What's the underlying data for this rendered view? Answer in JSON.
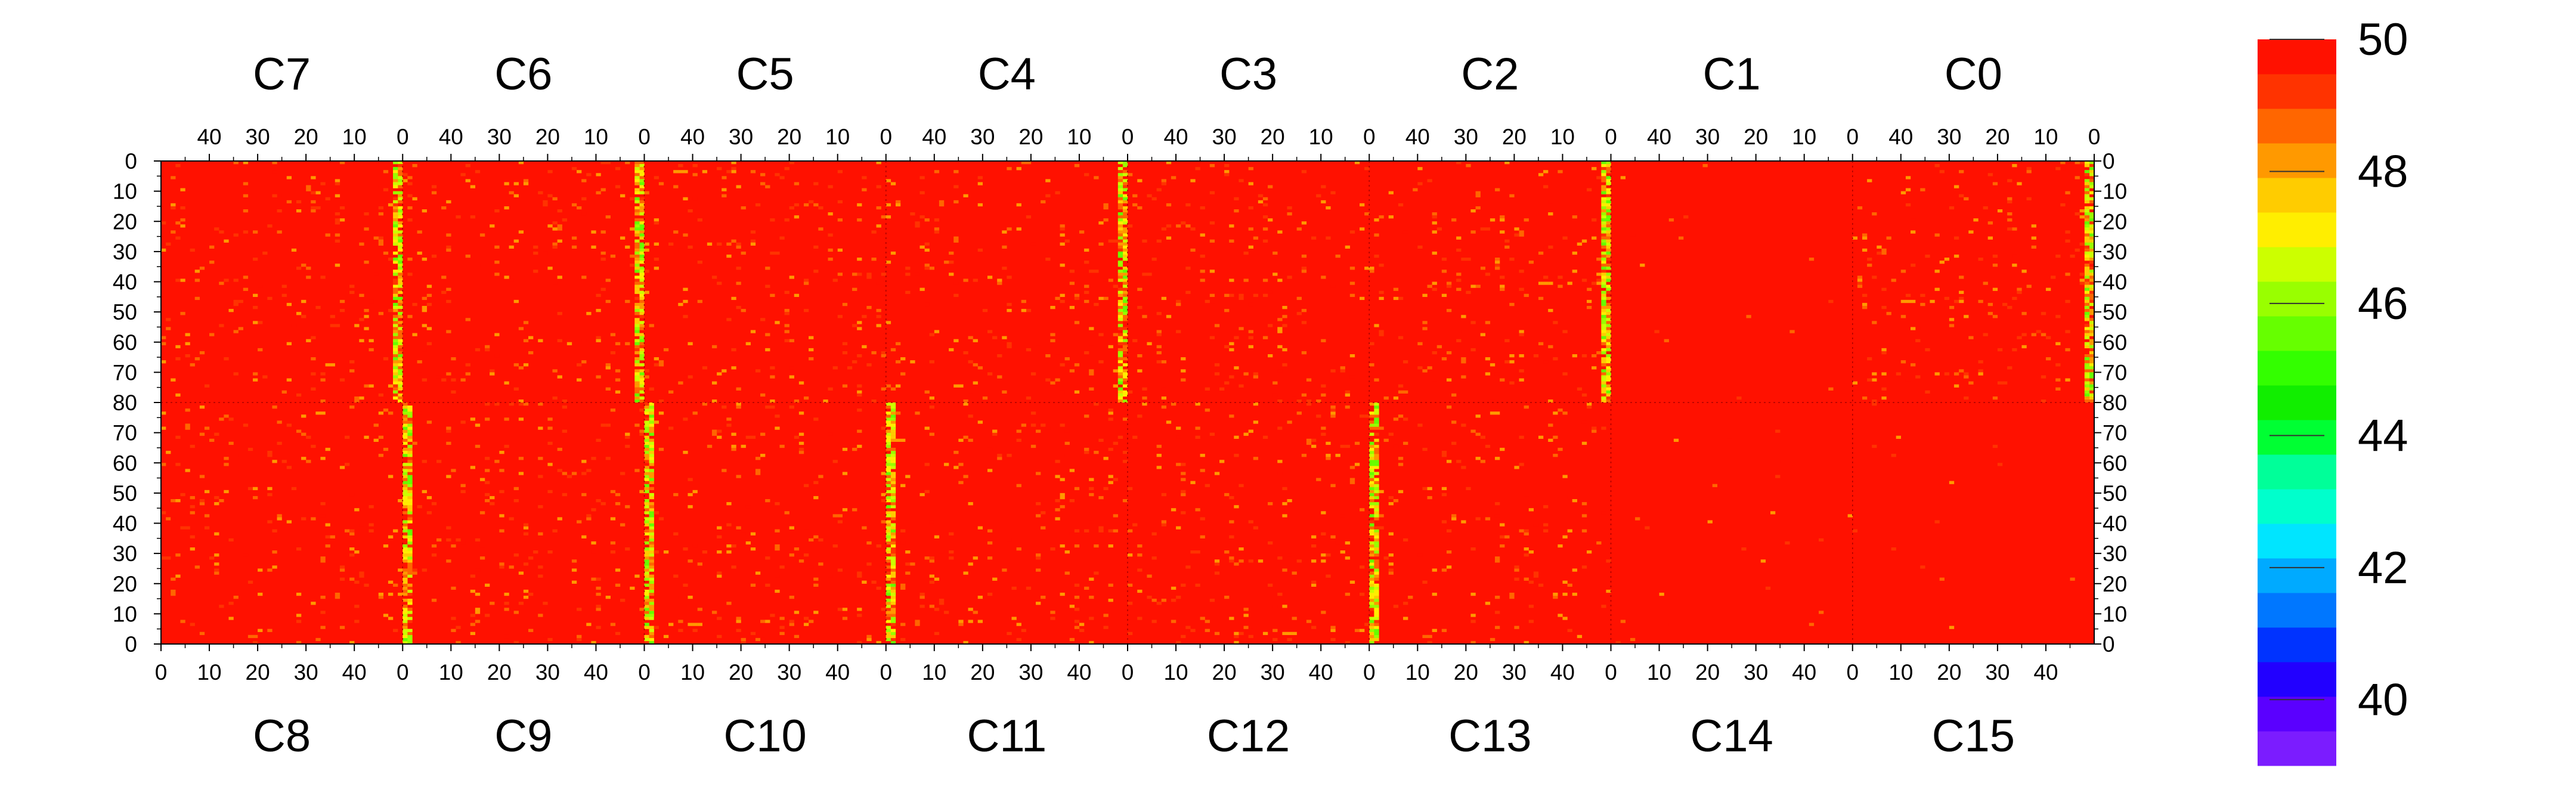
{
  "chart_data": {
    "type": "heatmap",
    "chip_columns": 50,
    "rows_per_half": 80,
    "top_chips": [
      "C7",
      "C6",
      "C5",
      "C4",
      "C3",
      "C2",
      "C1",
      "C0"
    ],
    "bottom_chips": [
      "C8",
      "C9",
      "C10",
      "C11",
      "C12",
      "C13",
      "C14",
      "C15"
    ],
    "top_axis_ticks": [
      "40",
      "30",
      "20",
      "10",
      "0"
    ],
    "bottom_axis_ticks": [
      "0",
      "10",
      "20",
      "30",
      "40"
    ],
    "y_ticks_top": [
      "0",
      "10",
      "20",
      "30",
      "40",
      "50",
      "60",
      "70",
      "80"
    ],
    "y_ticks_bottom": [
      "70",
      "60",
      "50",
      "40",
      "30",
      "20",
      "10",
      "0"
    ],
    "z_range": [
      39,
      50
    ],
    "colorbar_ticks": [
      "50",
      "48",
      "46",
      "44",
      "42",
      "40"
    ],
    "palette": [
      "#7b1cff",
      "#5a00ff",
      "#2200ff",
      "#0033ff",
      "#0077ff",
      "#00aaff",
      "#00e5ff",
      "#00ffcc",
      "#00ff99",
      "#00ff33",
      "#11ee00",
      "#33ff00",
      "#66ff00",
      "#99ff00",
      "#ccff00",
      "#ffee00",
      "#ffcc00",
      "#ff9900",
      "#ff6600",
      "#ff3300",
      "#ff1100"
    ],
    "dominant_value": 50,
    "noisy_edge_columns": [
      {
        "half": "top",
        "chip": "C7",
        "col": 0
      },
      {
        "half": "top",
        "chip": "C6",
        "col": 0
      },
      {
        "half": "top",
        "chip": "C4",
        "col": 0
      },
      {
        "half": "top",
        "chip": "C2",
        "col": 0
      },
      {
        "half": "top",
        "chip": "C0",
        "col": 0
      },
      {
        "half": "bottom",
        "chip": "C9",
        "col": 0
      },
      {
        "half": "bottom",
        "chip": "C10",
        "col": 0
      },
      {
        "half": "bottom",
        "chip": "C11",
        "col": 0
      },
      {
        "half": "bottom",
        "chip": "C13",
        "col": 0
      }
    ]
  }
}
